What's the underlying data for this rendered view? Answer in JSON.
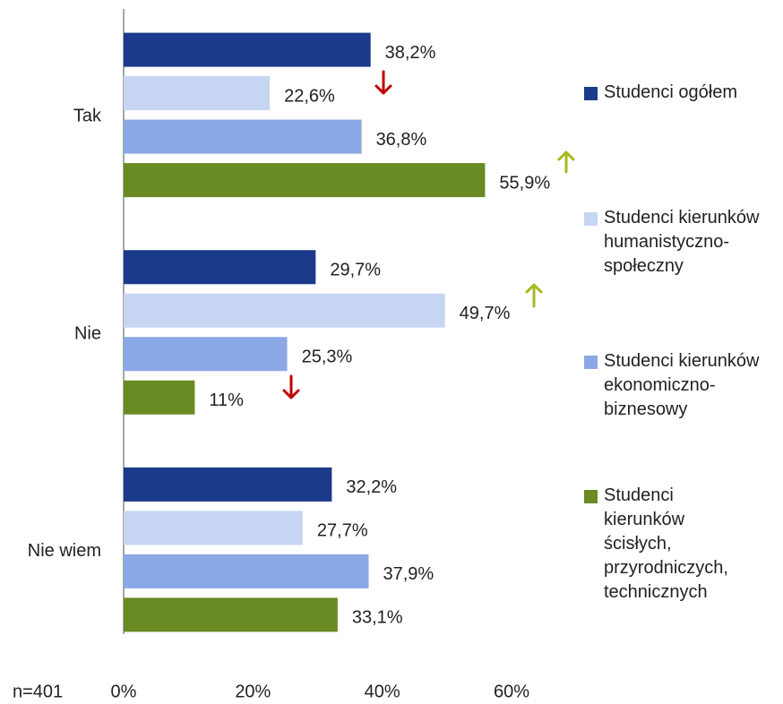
{
  "chart_data": {
    "type": "bar",
    "orientation": "horizontal",
    "categories": [
      "Tak",
      "Nie",
      "Nie wiem"
    ],
    "series": [
      {
        "name": "Studenci ogółem",
        "color": "#1c3a8c",
        "values": [
          38.2,
          29.7,
          32.2
        ],
        "value_labels": [
          "38,2%",
          "29,7%",
          "32,2%"
        ]
      },
      {
        "name": "Studenci kierunków humanistyczno-społeczny",
        "color": "#c6d5f2",
        "values": [
          22.6,
          49.7,
          27.7
        ],
        "value_labels": [
          "22,6%",
          "49,7%",
          "27,7%"
        ]
      },
      {
        "name": "Studenci kierunków ekonomiczno-biznesowy",
        "color": "#8ba8e6",
        "values": [
          36.8,
          25.3,
          37.9
        ],
        "value_labels": [
          "36,8%",
          "25,3%",
          "37,9%"
        ]
      },
      {
        "name": "Studenci kierunków ścisłych, przyrodniczych, technicznych",
        "color": "#6a8a23",
        "values": [
          55.9,
          11,
          33.1
        ],
        "value_labels": [
          "55,9%",
          "11%",
          "33,1%"
        ]
      }
    ],
    "xlim": [
      0,
      60
    ],
    "xticks": [
      {
        "value": 0,
        "label": "0%"
      },
      {
        "value": 20,
        "label": "20%"
      },
      {
        "value": 40,
        "label": "40%"
      },
      {
        "value": 60,
        "label": "60%"
      }
    ],
    "annotation": "n=401",
    "legend": "right"
  }
}
